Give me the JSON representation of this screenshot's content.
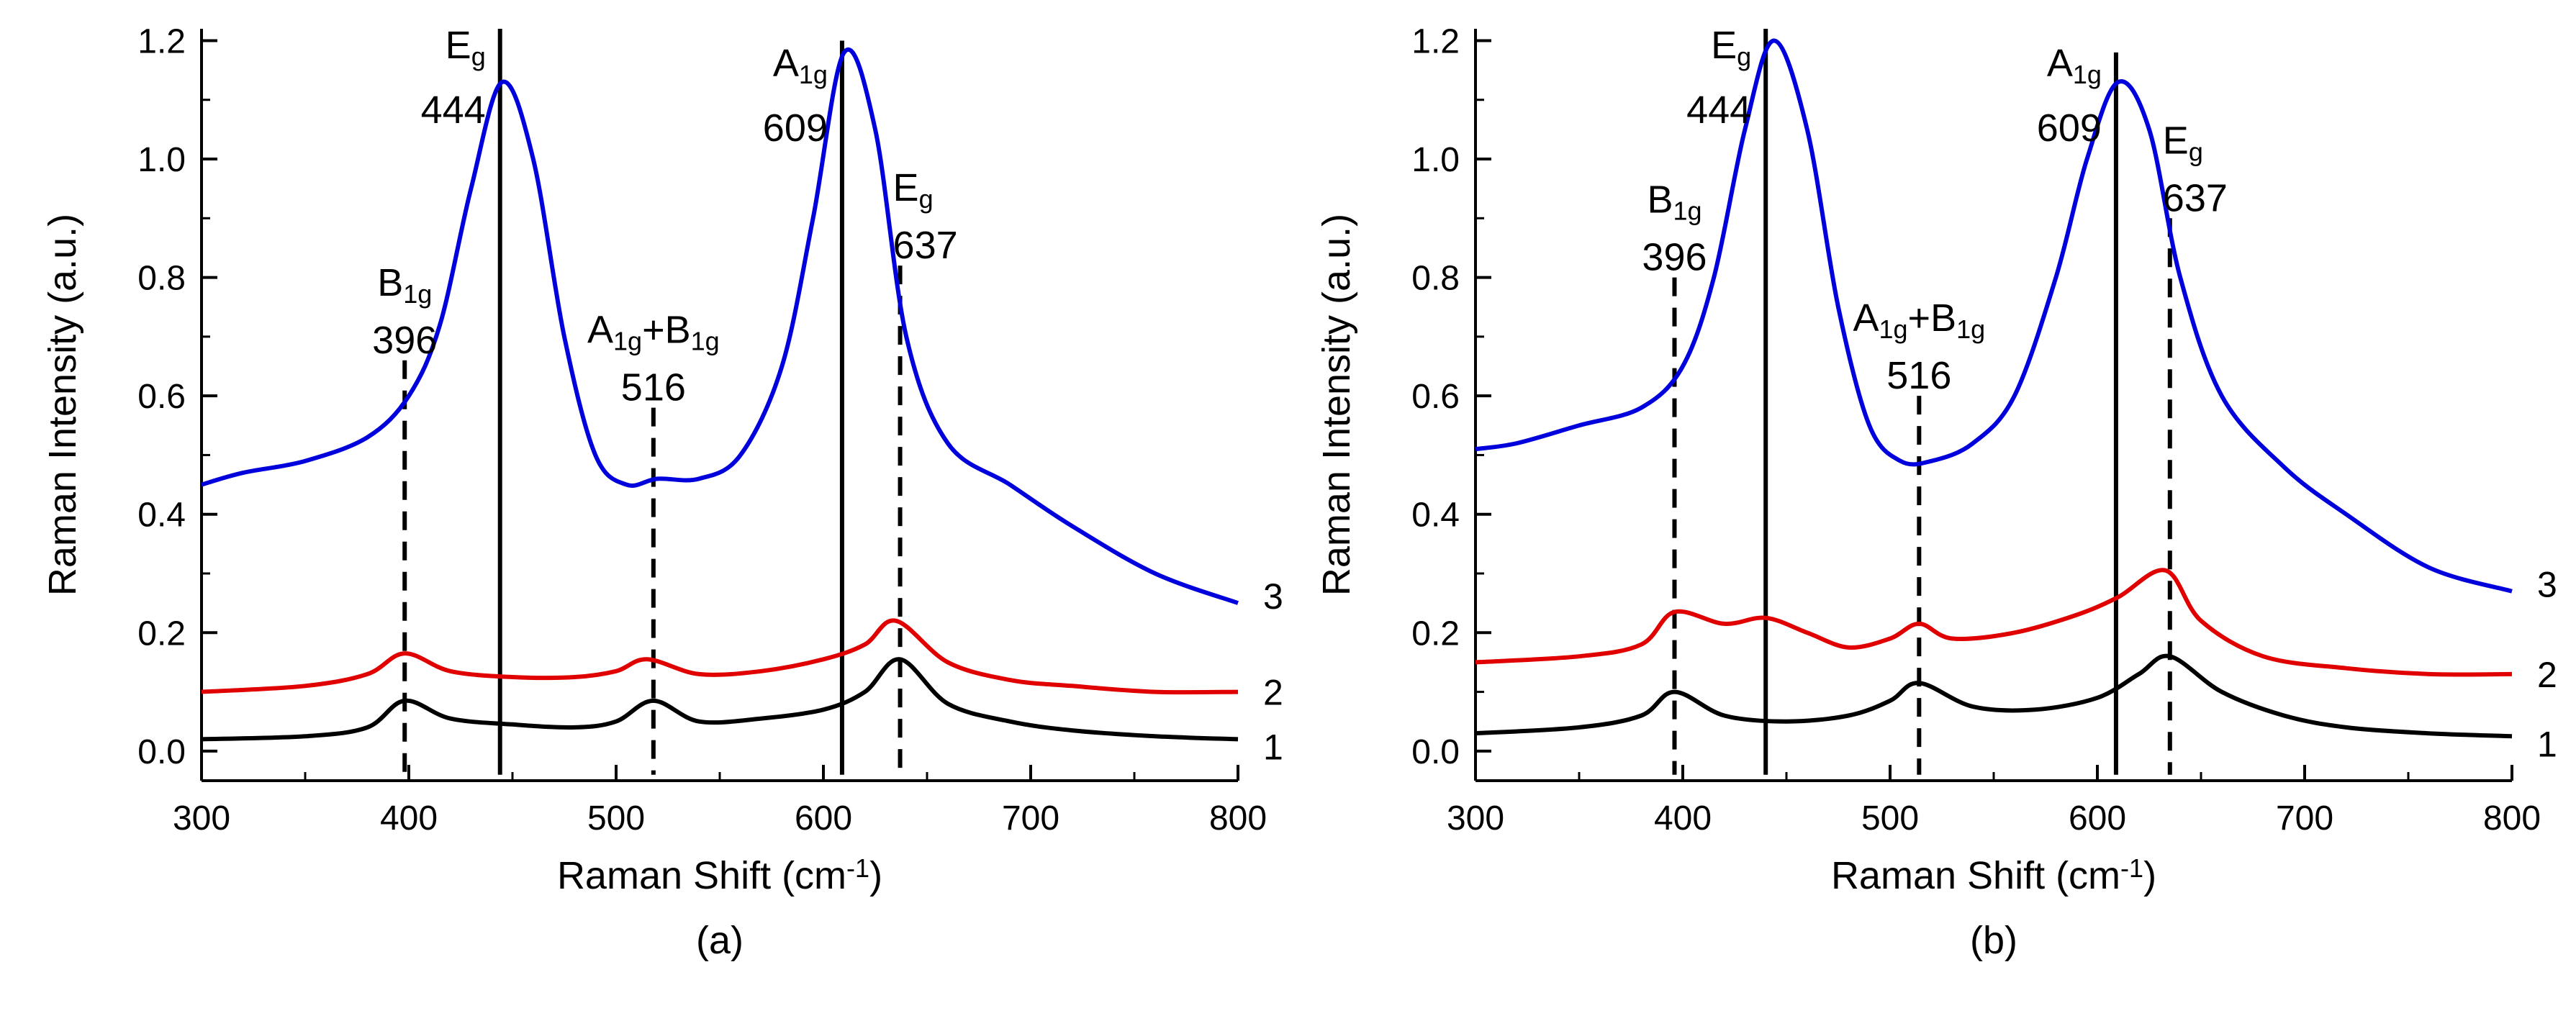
{
  "chart_data": [
    {
      "type": "line",
      "panel_label": "(a)",
      "xlabel": "Raman Shift (cm⁻¹)",
      "ylabel": "Raman Intensity (a.u.)",
      "xlim": [
        300,
        800
      ],
      "ylim": [
        -0.05,
        1.22
      ],
      "x_ticks": [
        300,
        400,
        500,
        600,
        700,
        800
      ],
      "y_ticks": [
        0.0,
        0.2,
        0.4,
        0.6,
        0.8,
        1.0,
        1.2
      ],
      "grid": false,
      "series": [
        {
          "name": "1",
          "color": "#000000",
          "x": [
            300,
            350,
            380,
            398,
            420,
            450,
            480,
            500,
            518,
            540,
            570,
            600,
            620,
            637,
            660,
            690,
            720,
            760,
            800
          ],
          "values": [
            0.02,
            0.025,
            0.04,
            0.085,
            0.055,
            0.045,
            0.04,
            0.05,
            0.085,
            0.05,
            0.055,
            0.07,
            0.1,
            0.155,
            0.08,
            0.05,
            0.035,
            0.025,
            0.02
          ]
        },
        {
          "name": "2",
          "color": "#e00000",
          "x": [
            300,
            350,
            380,
            398,
            420,
            450,
            480,
            500,
            515,
            540,
            570,
            600,
            620,
            635,
            660,
            690,
            720,
            760,
            800
          ],
          "values": [
            0.1,
            0.11,
            0.13,
            0.165,
            0.135,
            0.125,
            0.125,
            0.135,
            0.155,
            0.13,
            0.135,
            0.155,
            0.18,
            0.22,
            0.15,
            0.12,
            0.11,
            0.1,
            0.1
          ]
        },
        {
          "name": "3",
          "color": "#0000dd",
          "x": [
            300,
            320,
            350,
            380,
            400,
            415,
            430,
            445,
            460,
            475,
            490,
            505,
            520,
            540,
            560,
            580,
            595,
            610,
            625,
            640,
            660,
            690,
            720,
            760,
            800
          ],
          "values": [
            0.45,
            0.47,
            0.49,
            0.53,
            0.6,
            0.72,
            0.95,
            1.13,
            1.0,
            0.7,
            0.5,
            0.45,
            0.46,
            0.46,
            0.5,
            0.65,
            0.9,
            1.18,
            1.05,
            0.7,
            0.52,
            0.45,
            0.38,
            0.3,
            0.25
          ]
        }
      ],
      "annotations": [
        {
          "symbol": "B",
          "subscript": "1g",
          "value": "396",
          "x": 398,
          "line_style": "dashed",
          "line_top": 0.66
        },
        {
          "symbol": "E",
          "subscript": "g",
          "value": "444",
          "x": 444,
          "line_style": "solid",
          "line_top": 1.22
        },
        {
          "symbol": "A",
          "subscript": "1g",
          "extra": "+B",
          "extra_subscript": "1g",
          "value": "516",
          "x": 518,
          "line_style": "dashed",
          "line_top": 0.58
        },
        {
          "symbol": "A",
          "subscript": "1g",
          "value": "609",
          "x": 609,
          "line_style": "solid",
          "line_top": 1.2
        },
        {
          "symbol": "E",
          "subscript": "g",
          "value": "637",
          "x": 637,
          "line_style": "dashed",
          "line_top": 0.82
        }
      ]
    },
    {
      "type": "line",
      "panel_label": "(b)",
      "xlabel": "Raman Shift (cm⁻¹)",
      "ylabel": "Raman Intensity (a.u.)",
      "xlim": [
        300,
        800
      ],
      "ylim": [
        -0.05,
        1.22
      ],
      "x_ticks": [
        300,
        400,
        500,
        600,
        700,
        800
      ],
      "y_ticks": [
        0.0,
        0.2,
        0.4,
        0.6,
        0.8,
        1.0,
        1.2
      ],
      "grid": false,
      "series": [
        {
          "name": "1",
          "color": "#000000",
          "x": [
            300,
            350,
            380,
            396,
            420,
            450,
            480,
            500,
            514,
            540,
            570,
            600,
            620,
            635,
            660,
            690,
            720,
            760,
            800
          ],
          "values": [
            0.03,
            0.04,
            0.06,
            0.1,
            0.06,
            0.05,
            0.06,
            0.085,
            0.115,
            0.075,
            0.07,
            0.09,
            0.13,
            0.16,
            0.1,
            0.06,
            0.04,
            0.03,
            0.025
          ]
        },
        {
          "name": "2",
          "color": "#e00000",
          "x": [
            300,
            350,
            380,
            396,
            420,
            440,
            460,
            480,
            500,
            514,
            530,
            560,
            590,
            610,
            633,
            650,
            680,
            720,
            760,
            800
          ],
          "values": [
            0.15,
            0.16,
            0.18,
            0.235,
            0.215,
            0.225,
            0.2,
            0.175,
            0.19,
            0.215,
            0.19,
            0.2,
            0.23,
            0.26,
            0.305,
            0.22,
            0.16,
            0.14,
            0.13,
            0.13
          ]
        },
        {
          "name": "3",
          "color": "#0000dd",
          "x": [
            300,
            320,
            350,
            380,
            400,
            415,
            430,
            444,
            460,
            475,
            490,
            505,
            520,
            540,
            560,
            580,
            595,
            610,
            625,
            640,
            660,
            690,
            720,
            760,
            800
          ],
          "values": [
            0.51,
            0.52,
            0.55,
            0.58,
            0.65,
            0.8,
            1.05,
            1.2,
            1.05,
            0.75,
            0.55,
            0.49,
            0.49,
            0.52,
            0.6,
            0.8,
            1.0,
            1.13,
            1.05,
            0.8,
            0.6,
            0.48,
            0.4,
            0.31,
            0.27
          ]
        }
      ],
      "annotations": [
        {
          "symbol": "B",
          "subscript": "1g",
          "value": "396",
          "x": 396,
          "line_style": "dashed",
          "line_top": 0.8
        },
        {
          "symbol": "E",
          "subscript": "g",
          "value": "444",
          "x": 440,
          "line_style": "solid",
          "line_top": 1.22
        },
        {
          "symbol": "A",
          "subscript": "1g",
          "extra": "+B",
          "extra_subscript": "1g",
          "value": "516",
          "x": 514,
          "line_style": "dashed",
          "line_top": 0.6
        },
        {
          "symbol": "A",
          "subscript": "1g",
          "value": "609",
          "x": 609,
          "line_style": "solid",
          "line_top": 1.18
        },
        {
          "symbol": "E",
          "subscript": "g",
          "value": "637",
          "x": 635,
          "line_style": "dashed",
          "line_top": 0.9
        }
      ]
    }
  ]
}
